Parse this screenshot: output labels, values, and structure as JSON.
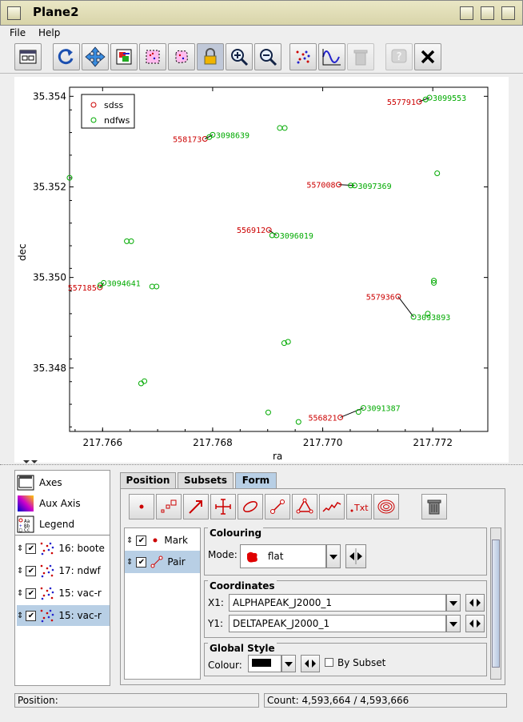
{
  "window": {
    "title": "Plane2"
  },
  "menu": {
    "file": "File",
    "help": "Help"
  },
  "toolbar": {
    "icons": [
      "display-window-icon",
      "replot-icon",
      "navigate-icon",
      "image-export-icon",
      "draw-subset-icon",
      "blob-subset-icon",
      "lock-axes-icon",
      "zoom-in-icon",
      "zoom-out-icon",
      "scatter-icon",
      "function-icon",
      "delete-icon",
      "help-icon",
      "close-icon"
    ]
  },
  "plot": {
    "xlabel": "ra",
    "ylabel": "dec",
    "xticks": [
      "217.766",
      "217.768",
      "217.770",
      "217.772"
    ],
    "yticks": [
      "35.354",
      "35.352",
      "35.350",
      "35.348"
    ],
    "legend": [
      {
        "label": "sdss",
        "color": "#cc0000"
      },
      {
        "label": "ndfws",
        "color": "#00aa00"
      }
    ],
    "point_labels": {
      "sdss": [
        "557791",
        "558173",
        "557008",
        "556912",
        "557185",
        "557936",
        "556821"
      ],
      "ndfws": [
        "3099553",
        "3098639",
        "3097369",
        "3096019",
        "3094641",
        "3093893",
        "3091387"
      ]
    }
  },
  "chart_data": {
    "type": "scatter",
    "xlabel": "ra",
    "ylabel": "dec",
    "xlim": [
      217.7654,
      217.773
    ],
    "ylim": [
      35.3466,
      35.3542
    ],
    "series": [
      {
        "name": "sdss",
        "color": "#cc0000",
        "points": [
          [
            217.77175,
            35.35388,
            "557791"
          ],
          [
            217.76786,
            35.35306,
            "558173"
          ],
          [
            217.77029,
            35.35205,
            "557008"
          ],
          [
            217.76902,
            35.35105,
            "556912"
          ],
          [
            217.76595,
            35.34978,
            "557185"
          ],
          [
            217.77137,
            35.34958,
            "557936"
          ],
          [
            217.77032,
            35.34691,
            "556821"
          ]
        ]
      },
      {
        "name": "ndfws",
        "color": "#00aa00",
        "points": [
          [
            217.77194,
            35.35397,
            "3099553"
          ],
          [
            217.77187,
            35.35393,
            ""
          ],
          [
            217.768,
            35.35315,
            "3098639"
          ],
          [
            217.76794,
            35.3531,
            ""
          ],
          [
            217.76922,
            35.3533,
            ""
          ],
          [
            217.76931,
            35.3533,
            ""
          ],
          [
            217.7654,
            35.3522,
            ""
          ],
          [
            217.77208,
            35.3523,
            ""
          ],
          [
            217.77058,
            35.35203,
            "3097369"
          ],
          [
            217.77051,
            35.35203,
            ""
          ],
          [
            217.76916,
            35.35093,
            "3096019"
          ],
          [
            217.76908,
            35.35093,
            ""
          ],
          [
            217.76644,
            35.3508,
            ""
          ],
          [
            217.76652,
            35.3508,
            ""
          ],
          [
            217.76602,
            35.34988,
            "3094641"
          ],
          [
            217.76596,
            35.34983,
            ""
          ],
          [
            217.7669,
            35.3498,
            ""
          ],
          [
            217.76698,
            35.3498,
            ""
          ],
          [
            217.77202,
            35.34993,
            ""
          ],
          [
            217.77202,
            35.34988,
            ""
          ],
          [
            217.77165,
            35.34913,
            "3093893"
          ],
          [
            217.77191,
            35.3492,
            ""
          ],
          [
            217.7693,
            35.34855,
            ""
          ],
          [
            217.76937,
            35.34858,
            ""
          ],
          [
            217.7667,
            35.34766,
            ""
          ],
          [
            217.76676,
            35.34771,
            ""
          ],
          [
            217.76901,
            35.34702,
            ""
          ],
          [
            217.76956,
            35.34681,
            ""
          ],
          [
            217.77074,
            35.34712,
            "3091387"
          ],
          [
            217.77065,
            35.34703,
            ""
          ]
        ]
      }
    ],
    "pairs": [
      [
        217.77175,
        35.35388,
        217.77194,
        35.35397
      ],
      [
        217.76786,
        35.35306,
        217.768,
        35.35315
      ],
      [
        217.77029,
        35.35205,
        217.77058,
        35.35203
      ],
      [
        217.76902,
        35.35105,
        217.76916,
        35.35093
      ],
      [
        217.76595,
        35.34978,
        217.76602,
        35.34988
      ],
      [
        217.77137,
        35.34958,
        217.77165,
        35.34913
      ],
      [
        217.77032,
        35.34691,
        217.77074,
        35.34712
      ]
    ]
  },
  "controls": {
    "fixed": [
      "Axes",
      "Aux Axis",
      "Legend"
    ],
    "layers": [
      {
        "label": "16: boote",
        "checked": true
      },
      {
        "label": "17: ndwf",
        "checked": true
      },
      {
        "label": "15: vac-r",
        "checked": true
      },
      {
        "label": "15: vac-r",
        "checked": true
      }
    ]
  },
  "tabs": [
    "Position",
    "Subsets",
    "Form"
  ],
  "form": {
    "layers": [
      {
        "label": "Mark",
        "checked": true
      },
      {
        "label": "Pair",
        "checked": true
      }
    ],
    "colouring": {
      "title": "Colouring",
      "mode_label": "Mode:",
      "mode_value": "flat"
    },
    "coordinates": {
      "title": "Coordinates",
      "x1_label": "X1:",
      "x1_value": "ALPHAPEAK_J2000_1",
      "y1_label": "Y1:",
      "y1_value": "DELTAPEAK_J2000_1"
    },
    "global_style": {
      "title": "Global Style",
      "colour_label": "Colour:",
      "by_subset_label": "By Subset",
      "colour": "#000000"
    }
  },
  "status": {
    "position": "Position:",
    "count": "Count: 4,593,664 / 4,593,666"
  }
}
